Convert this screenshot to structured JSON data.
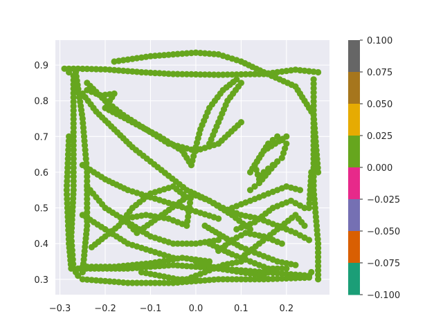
{
  "chart_data": {
    "type": "scatter",
    "title": "",
    "xlabel": "",
    "ylabel": "",
    "xlim": [
      -0.31,
      0.295
    ],
    "ylim": [
      0.257,
      0.97
    ],
    "xticks": [
      "−0.3",
      "−0.2",
      "−0.1",
      "0.0",
      "0.1",
      "0.2"
    ],
    "xtick_values": [
      -0.3,
      -0.2,
      -0.1,
      0.0,
      0.1,
      0.2
    ],
    "yticks": [
      "0.3",
      "0.4",
      "0.5",
      "0.6",
      "0.7",
      "0.8",
      "0.9"
    ],
    "ytick_values": [
      0.3,
      0.4,
      0.5,
      0.6,
      0.7,
      0.8,
      0.9
    ],
    "grid": true,
    "background": "#eaeaf2",
    "point_color": "#66a61e",
    "trajectory": [
      [
        -0.29,
        0.89
      ],
      [
        -0.26,
        0.89
      ],
      [
        -0.2,
        0.888
      ],
      [
        -0.12,
        0.88
      ],
      [
        -0.05,
        0.875
      ],
      [
        0.05,
        0.873
      ],
      [
        0.15,
        0.875
      ],
      [
        0.22,
        0.887
      ],
      [
        0.27,
        0.88
      ],
      [
        -0.18,
        0.91
      ],
      [
        -0.1,
        0.925
      ],
      [
        0.0,
        0.935
      ],
      [
        0.05,
        0.93
      ],
      [
        0.1,
        0.91
      ],
      [
        0.15,
        0.88
      ],
      [
        0.22,
        0.84
      ],
      [
        0.26,
        0.76
      ],
      [
        0.27,
        0.6
      ],
      [
        -0.27,
        0.87
      ],
      [
        -0.27,
        0.7
      ],
      [
        -0.27,
        0.55
      ],
      [
        -0.275,
        0.42
      ],
      [
        -0.27,
        0.33
      ],
      [
        -0.26,
        0.31
      ],
      [
        -0.28,
        0.88
      ],
      [
        -0.28,
        0.7
      ],
      [
        -0.285,
        0.55
      ],
      [
        -0.28,
        0.4
      ],
      [
        -0.275,
        0.33
      ],
      [
        -0.265,
        0.88
      ],
      [
        -0.25,
        0.75
      ],
      [
        -0.24,
        0.6
      ],
      [
        -0.24,
        0.45
      ],
      [
        -0.25,
        0.32
      ],
      [
        -0.26,
        0.33
      ],
      [
        -0.15,
        0.33
      ],
      [
        -0.05,
        0.34
      ],
      [
        0.05,
        0.33
      ],
      [
        0.15,
        0.32
      ],
      [
        0.25,
        0.31
      ],
      [
        -0.25,
        0.3
      ],
      [
        -0.15,
        0.29
      ],
      [
        -0.05,
        0.29
      ],
      [
        0.05,
        0.3
      ],
      [
        0.15,
        0.3
      ],
      [
        0.25,
        0.305
      ],
      [
        -0.25,
        0.335
      ],
      [
        -0.18,
        0.335
      ],
      [
        -0.1,
        0.345
      ],
      [
        -0.03,
        0.36
      ],
      [
        0.03,
        0.35
      ],
      [
        0.27,
        0.3
      ],
      [
        0.27,
        0.4
      ],
      [
        0.26,
        0.55
      ],
      [
        0.26,
        0.7
      ],
      [
        0.26,
        0.86
      ],
      [
        0.255,
        0.32
      ],
      [
        0.25,
        0.5
      ],
      [
        0.255,
        0.6
      ],
      [
        -0.25,
        0.82
      ],
      [
        -0.22,
        0.77
      ],
      [
        -0.18,
        0.72
      ],
      [
        -0.14,
        0.67
      ],
      [
        -0.1,
        0.63
      ],
      [
        -0.06,
        0.59
      ],
      [
        -0.02,
        0.55
      ],
      [
        0.03,
        0.52
      ],
      [
        0.08,
        0.48
      ],
      [
        0.12,
        0.44
      ],
      [
        -0.24,
        0.85
      ],
      [
        -0.2,
        0.8
      ],
      [
        -0.16,
        0.76
      ],
      [
        -0.11,
        0.72
      ],
      [
        -0.06,
        0.68
      ],
      [
        0.0,
        0.66
      ],
      [
        0.05,
        0.68
      ],
      [
        0.1,
        0.74
      ],
      [
        -0.24,
        0.83
      ],
      [
        -0.21,
        0.815
      ],
      [
        -0.18,
        0.82
      ],
      [
        -0.2,
        0.78
      ],
      [
        -0.14,
        0.74
      ],
      [
        -0.08,
        0.7
      ],
      [
        -0.03,
        0.66
      ],
      [
        -0.01,
        0.62
      ],
      [
        0.01,
        0.72
      ],
      [
        0.03,
        0.78
      ],
      [
        0.06,
        0.83
      ],
      [
        0.09,
        0.86
      ],
      [
        0.03,
        0.68
      ],
      [
        0.05,
        0.74
      ],
      [
        0.07,
        0.8
      ],
      [
        0.1,
        0.85
      ],
      [
        -0.25,
        0.62
      ],
      [
        -0.2,
        0.58
      ],
      [
        -0.15,
        0.55
      ],
      [
        -0.1,
        0.53
      ],
      [
        -0.05,
        0.51
      ],
      [
        0.0,
        0.49
      ],
      [
        0.05,
        0.47
      ],
      [
        -0.24,
        0.56
      ],
      [
        -0.2,
        0.5
      ],
      [
        -0.15,
        0.46
      ],
      [
        -0.1,
        0.42
      ],
      [
        -0.05,
        0.4
      ],
      [
        0.0,
        0.4
      ],
      [
        0.05,
        0.41
      ],
      [
        -0.25,
        0.48
      ],
      [
        -0.2,
        0.44
      ],
      [
        -0.15,
        0.4
      ],
      [
        -0.1,
        0.38
      ],
      [
        -0.05,
        0.36
      ],
      [
        -0.23,
        0.39
      ],
      [
        -0.2,
        0.42
      ],
      [
        -0.17,
        0.45
      ],
      [
        -0.14,
        0.5
      ],
      [
        -0.1,
        0.54
      ],
      [
        -0.05,
        0.56
      ],
      [
        -0.02,
        0.53
      ],
      [
        -0.13,
        0.43
      ],
      [
        -0.16,
        0.47
      ],
      [
        -0.11,
        0.48
      ],
      [
        -0.06,
        0.47
      ],
      [
        -0.02,
        0.45
      ],
      [
        -0.01,
        0.54
      ],
      [
        0.03,
        0.52
      ],
      [
        0.06,
        0.5
      ],
      [
        0.1,
        0.48
      ],
      [
        0.14,
        0.47
      ],
      [
        0.18,
        0.45
      ],
      [
        0.22,
        0.43
      ],
      [
        0.25,
        0.41
      ],
      [
        0.02,
        0.45
      ],
      [
        0.06,
        0.42
      ],
      [
        0.1,
        0.39
      ],
      [
        0.14,
        0.37
      ],
      [
        0.18,
        0.35
      ],
      [
        0.22,
        0.34
      ],
      [
        0.03,
        0.4
      ],
      [
        0.08,
        0.37
      ],
      [
        0.12,
        0.35
      ],
      [
        0.16,
        0.33
      ],
      [
        0.2,
        0.33
      ],
      [
        0.0,
        0.35
      ],
      [
        0.05,
        0.33
      ],
      [
        0.1,
        0.32
      ],
      [
        0.15,
        0.31
      ],
      [
        0.08,
        0.5
      ],
      [
        0.12,
        0.52
      ],
      [
        0.16,
        0.54
      ],
      [
        0.2,
        0.56
      ],
      [
        0.23,
        0.55
      ],
      [
        0.09,
        0.44
      ],
      [
        0.13,
        0.46
      ],
      [
        0.17,
        0.5
      ],
      [
        0.21,
        0.52
      ],
      [
        0.24,
        0.5
      ],
      [
        0.1,
        0.36
      ],
      [
        0.14,
        0.4
      ],
      [
        0.18,
        0.44
      ],
      [
        0.22,
        0.48
      ],
      [
        0.24,
        0.45
      ],
      [
        0.12,
        0.6
      ],
      [
        0.14,
        0.64
      ],
      [
        0.16,
        0.68
      ],
      [
        0.18,
        0.7
      ],
      [
        0.2,
        0.68
      ],
      [
        0.19,
        0.64
      ],
      [
        0.17,
        0.62
      ],
      [
        0.15,
        0.6
      ],
      [
        0.14,
        0.58
      ],
      [
        0.13,
        0.62
      ],
      [
        0.15,
        0.66
      ],
      [
        0.2,
        0.7
      ],
      [
        0.12,
        0.55
      ],
      [
        0.14,
        0.57
      ],
      [
        0.16,
        0.6
      ],
      [
        0.18,
        0.63
      ],
      [
        0.05,
        0.38
      ],
      [
        0.08,
        0.41
      ],
      [
        0.11,
        0.43
      ],
      [
        0.15,
        0.42
      ],
      [
        0.19,
        0.4
      ],
      [
        -0.02,
        0.3
      ],
      [
        0.02,
        0.32
      ],
      [
        0.06,
        0.34
      ],
      [
        0.1,
        0.35
      ],
      [
        -0.12,
        0.32
      ],
      [
        -0.08,
        0.31
      ],
      [
        -0.04,
        0.3
      ],
      [
        0.0,
        0.3
      ]
    ]
  },
  "colorbar": {
    "ticks": [
      "0.100",
      "0.075",
      "0.050",
      "0.025",
      "0.000",
      "−0.025",
      "−0.050",
      "−0.075",
      "−0.100"
    ],
    "segments_top_to_bottom": [
      "#666666",
      "#a6761d",
      "#e6ab02",
      "#66a61e",
      "#e7298a",
      "#7570b3",
      "#d95f02",
      "#1b9e77"
    ]
  }
}
